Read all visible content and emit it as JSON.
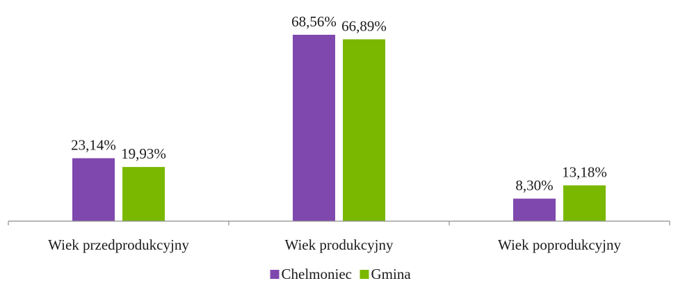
{
  "chart_data": {
    "type": "bar",
    "categories": [
      "Wiek przedprodukcyjny",
      "Wiek produkcyjny",
      "Wiek poprodukcyjny"
    ],
    "series": [
      {
        "name": "Chelmoniec",
        "values": [
          23.14,
          68.56,
          8.3
        ],
        "labels": [
          "23,14%",
          "68,56%",
          "8,30%"
        ],
        "color": "#7f48ae"
      },
      {
        "name": "Gmina",
        "values": [
          19.93,
          66.89,
          13.18
        ],
        "labels": [
          "19,93%",
          "66,89%",
          "13,18%"
        ],
        "color": "#7ab800"
      }
    ],
    "title": "",
    "xlabel": "",
    "ylabel": "",
    "ylim": [
      0,
      75
    ],
    "grid": false,
    "legend": "bottom",
    "axis_color": "#8c8c8c"
  }
}
